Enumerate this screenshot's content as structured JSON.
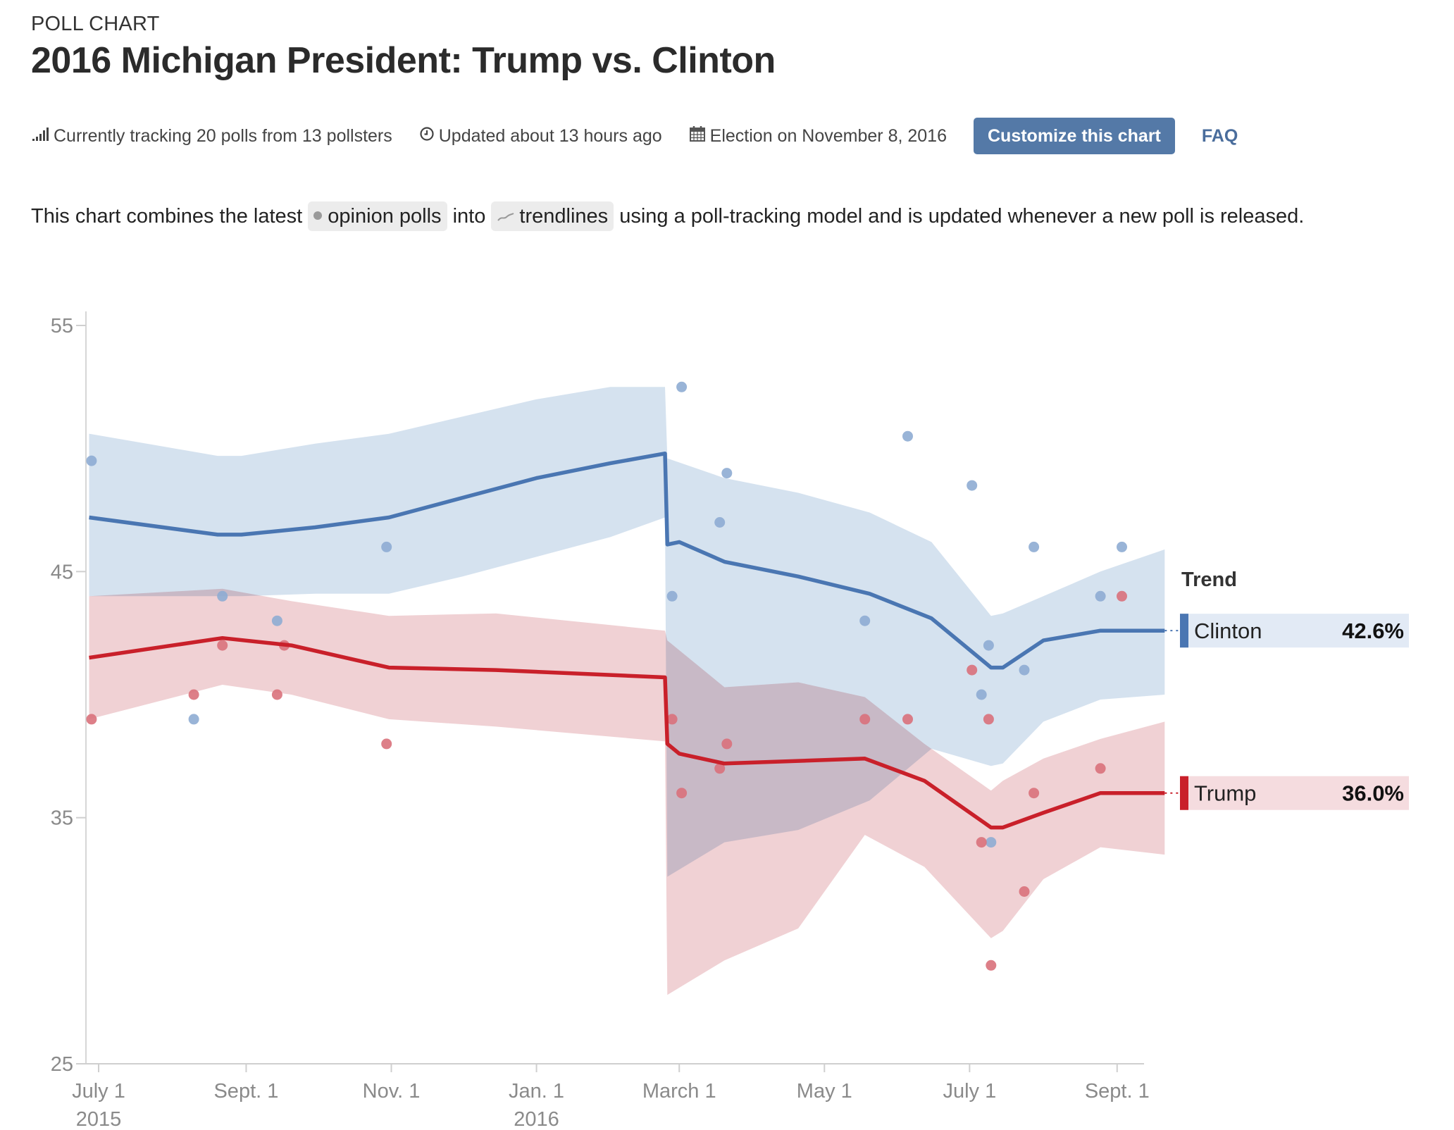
{
  "header": {
    "eyebrow": "POLL CHART",
    "title": "2016 Michigan President: Trump vs. Clinton"
  },
  "meta": {
    "tracking": "Currently tracking 20 polls from 13 pollsters",
    "updated": "Updated about 13 hours ago",
    "election": "Election on November 8, 2016",
    "customize_label": "Customize this chart",
    "faq_label": "FAQ",
    "icons": [
      "signal-bars-icon",
      "clock-icon",
      "calendar-icon"
    ]
  },
  "description": {
    "part1": "This chart combines the latest",
    "chip_polls": "opinion polls",
    "part2": "into",
    "chip_trend": "trendlines",
    "part3": "using a poll-tracking model and is updated whenever a new poll is released."
  },
  "colors": {
    "clinton": "#4a76b2",
    "clinton_band": "#d3e0ee",
    "clinton_point": "#8eacd3",
    "trump": "#c9202a",
    "trump_band": "#edc9cd",
    "trump_point": "#d9717b",
    "button": "#5479a7",
    "faq": "#4a6d9c"
  },
  "chart_data": {
    "type": "line",
    "title": "2016 Michigan President: Trump vs. Clinton",
    "xlabel": "",
    "ylabel": "",
    "ylim": [
      25,
      55
    ],
    "yticks": [
      25,
      35,
      45,
      55
    ],
    "x_start": "2015-06-27",
    "x_end": "2016-09-21",
    "xticks": [
      {
        "date": "2015-07-01",
        "label": "July 1",
        "sub": "2015"
      },
      {
        "date": "2015-09-01",
        "label": "Sept. 1",
        "sub": ""
      },
      {
        "date": "2015-11-01",
        "label": "Nov. 1",
        "sub": ""
      },
      {
        "date": "2016-01-01",
        "label": "Jan. 1",
        "sub": "2016"
      },
      {
        "date": "2016-03-01",
        "label": "March 1",
        "sub": ""
      },
      {
        "date": "2016-05-01",
        "label": "May 1",
        "sub": ""
      },
      {
        "date": "2016-07-01",
        "label": "July 1",
        "sub": ""
      },
      {
        "date": "2016-09-01",
        "label": "Sept. 1",
        "sub": ""
      }
    ],
    "grid": false,
    "legend": {
      "title": "Trend",
      "placement": "right"
    },
    "series": [
      {
        "name": "Clinton",
        "latest": "42.6%",
        "trend": [
          [
            "2015-06-27",
            47.2
          ],
          [
            "2015-08-20",
            46.5
          ],
          [
            "2015-08-30",
            46.5
          ],
          [
            "2015-09-30",
            46.8
          ],
          [
            "2015-10-31",
            47.2
          ],
          [
            "2015-12-01",
            48.0
          ],
          [
            "2016-01-01",
            48.8
          ],
          [
            "2016-02-01",
            49.4
          ],
          [
            "2016-02-24",
            49.8
          ],
          [
            "2016-02-25",
            46.1
          ],
          [
            "2016-03-01",
            46.2
          ],
          [
            "2016-03-20",
            45.4
          ],
          [
            "2016-04-20",
            44.8
          ],
          [
            "2016-05-20",
            44.1
          ],
          [
            "2016-06-15",
            43.1
          ],
          [
            "2016-07-10",
            41.1
          ],
          [
            "2016-07-15",
            41.1
          ],
          [
            "2016-08-01",
            42.2
          ],
          [
            "2016-08-25",
            42.6
          ],
          [
            "2016-09-21",
            42.6
          ]
        ],
        "band_upper": [
          [
            "2015-06-27",
            50.6
          ],
          [
            "2015-08-20",
            49.7
          ],
          [
            "2015-08-30",
            49.7
          ],
          [
            "2015-09-30",
            50.2
          ],
          [
            "2015-10-31",
            50.6
          ],
          [
            "2015-12-01",
            51.3
          ],
          [
            "2016-01-01",
            52.0
          ],
          [
            "2016-02-01",
            52.5
          ],
          [
            "2016-02-24",
            52.5
          ],
          [
            "2016-02-25",
            49.6
          ],
          [
            "2016-03-20",
            48.8
          ],
          [
            "2016-04-20",
            48.2
          ],
          [
            "2016-05-20",
            47.4
          ],
          [
            "2016-06-15",
            46.2
          ],
          [
            "2016-07-10",
            43.2
          ],
          [
            "2016-07-15",
            43.3
          ],
          [
            "2016-08-01",
            44.0
          ],
          [
            "2016-08-25",
            45.0
          ],
          [
            "2016-09-21",
            45.9
          ]
        ],
        "band_lower": [
          [
            "2015-06-27",
            44.0
          ],
          [
            "2015-08-20",
            44.0
          ],
          [
            "2015-08-30",
            44.0
          ],
          [
            "2015-09-30",
            44.1
          ],
          [
            "2015-10-31",
            44.1
          ],
          [
            "2015-12-01",
            44.8
          ],
          [
            "2016-01-01",
            45.6
          ],
          [
            "2016-02-01",
            46.4
          ],
          [
            "2016-02-24",
            47.2
          ],
          [
            "2016-02-25",
            32.6
          ],
          [
            "2016-03-20",
            34.0
          ],
          [
            "2016-04-20",
            34.5
          ],
          [
            "2016-05-20",
            35.7
          ],
          [
            "2016-06-15",
            37.8
          ],
          [
            "2016-07-10",
            37.1
          ],
          [
            "2016-07-15",
            37.2
          ],
          [
            "2016-08-01",
            38.9
          ],
          [
            "2016-08-25",
            39.8
          ],
          [
            "2016-09-21",
            40.0
          ]
        ],
        "polls": [
          [
            "2015-06-28",
            49.5
          ],
          [
            "2015-08-10",
            39.0
          ],
          [
            "2015-08-22",
            44.0
          ],
          [
            "2015-09-14",
            43.0
          ],
          [
            "2015-10-30",
            46.0
          ],
          [
            "2016-02-27",
            44.0
          ],
          [
            "2016-03-02",
            52.5
          ],
          [
            "2016-03-18",
            47.0
          ],
          [
            "2016-03-21",
            49.0
          ],
          [
            "2016-05-18",
            43.0
          ],
          [
            "2016-06-05",
            50.5
          ],
          [
            "2016-07-02",
            48.5
          ],
          [
            "2016-07-06",
            40.0
          ],
          [
            "2016-07-09",
            42.0
          ],
          [
            "2016-07-10",
            34.0
          ],
          [
            "2016-07-24",
            41.0
          ],
          [
            "2016-07-28",
            46.0
          ],
          [
            "2016-08-25",
            44.0
          ],
          [
            "2016-09-03",
            46.0
          ]
        ]
      },
      {
        "name": "Trump",
        "latest": "36.0%",
        "trend": [
          [
            "2015-06-27",
            41.5
          ],
          [
            "2015-08-22",
            42.3
          ],
          [
            "2015-09-20",
            42.0
          ],
          [
            "2015-10-31",
            41.1
          ],
          [
            "2015-12-15",
            41.0
          ],
          [
            "2016-02-24",
            40.7
          ],
          [
            "2016-02-25",
            38.0
          ],
          [
            "2016-03-01",
            37.6
          ],
          [
            "2016-03-20",
            37.2
          ],
          [
            "2016-05-18",
            37.4
          ],
          [
            "2016-06-12",
            36.5
          ],
          [
            "2016-07-10",
            34.6
          ],
          [
            "2016-07-15",
            34.6
          ],
          [
            "2016-08-01",
            35.2
          ],
          [
            "2016-08-25",
            36.0
          ],
          [
            "2016-09-21",
            36.0
          ]
        ],
        "band_upper": [
          [
            "2015-06-27",
            44.0
          ],
          [
            "2015-08-22",
            44.3
          ],
          [
            "2015-09-20",
            43.8
          ],
          [
            "2015-10-31",
            43.2
          ],
          [
            "2015-12-15",
            43.3
          ],
          [
            "2016-02-24",
            42.6
          ],
          [
            "2016-02-25",
            42.2
          ],
          [
            "2016-03-20",
            40.3
          ],
          [
            "2016-04-20",
            40.5
          ],
          [
            "2016-05-18",
            39.9
          ],
          [
            "2016-06-12",
            38.0
          ],
          [
            "2016-07-10",
            36.1
          ],
          [
            "2016-07-15",
            36.5
          ],
          [
            "2016-08-01",
            37.4
          ],
          [
            "2016-08-25",
            38.2
          ],
          [
            "2016-09-21",
            38.9
          ]
        ],
        "band_lower": [
          [
            "2015-06-27",
            39.0
          ],
          [
            "2015-08-22",
            40.4
          ],
          [
            "2015-09-20",
            40.0
          ],
          [
            "2015-10-31",
            39.0
          ],
          [
            "2015-12-15",
            38.7
          ],
          [
            "2016-02-24",
            38.1
          ],
          [
            "2016-02-25",
            27.8
          ],
          [
            "2016-03-20",
            29.2
          ],
          [
            "2016-04-20",
            30.5
          ],
          [
            "2016-05-18",
            34.3
          ],
          [
            "2016-06-12",
            33.0
          ],
          [
            "2016-07-10",
            30.1
          ],
          [
            "2016-07-15",
            30.4
          ],
          [
            "2016-08-01",
            32.5
          ],
          [
            "2016-08-25",
            33.8
          ],
          [
            "2016-09-21",
            33.5
          ]
        ],
        "polls": [
          [
            "2015-06-28",
            39.0
          ],
          [
            "2015-08-10",
            40.0
          ],
          [
            "2015-08-22",
            42.0
          ],
          [
            "2015-09-14",
            40.0
          ],
          [
            "2015-09-17",
            42.0
          ],
          [
            "2015-10-30",
            38.0
          ],
          [
            "2016-02-27",
            39.0
          ],
          [
            "2016-03-02",
            36.0
          ],
          [
            "2016-03-18",
            37.0
          ],
          [
            "2016-03-21",
            38.0
          ],
          [
            "2016-05-18",
            39.0
          ],
          [
            "2016-06-05",
            39.0
          ],
          [
            "2016-07-02",
            41.0
          ],
          [
            "2016-07-06",
            34.0
          ],
          [
            "2016-07-09",
            39.0
          ],
          [
            "2016-07-10",
            29.0
          ],
          [
            "2016-07-24",
            32.0
          ],
          [
            "2016-07-28",
            36.0
          ],
          [
            "2016-08-25",
            37.0
          ],
          [
            "2016-09-03",
            44.0
          ]
        ]
      }
    ]
  }
}
